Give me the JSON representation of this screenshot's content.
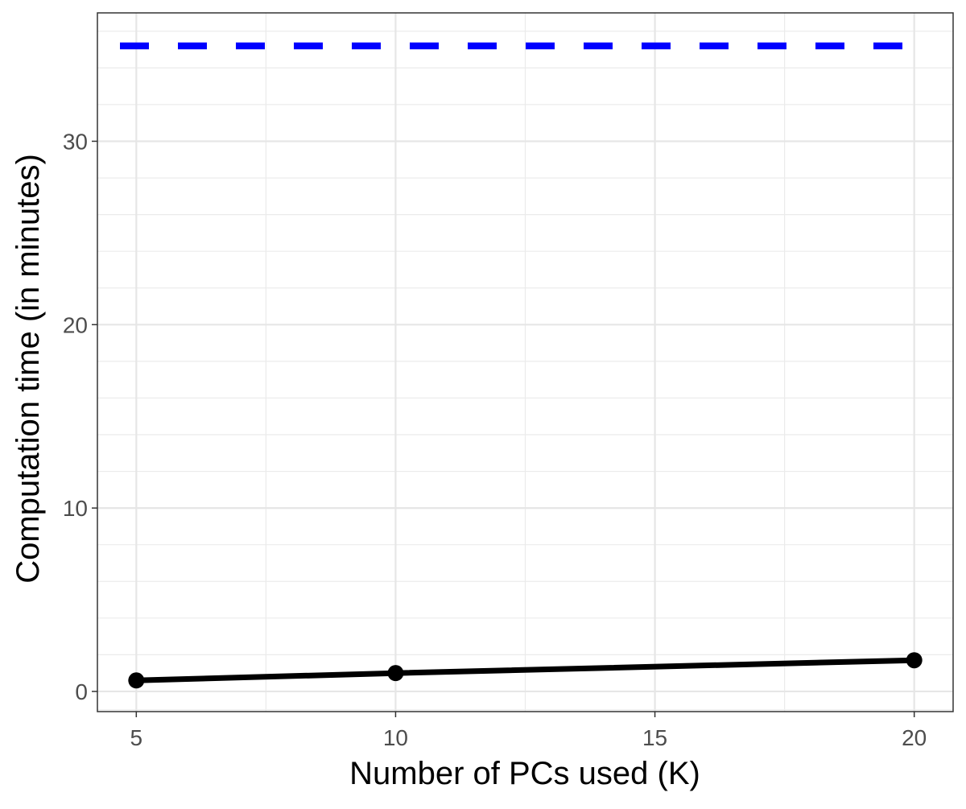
{
  "chart_data": {
    "type": "line",
    "xlabel": "Number of PCs used (K)",
    "ylabel": "Computation time (in minutes)",
    "xlim": [
      4.25,
      20.75
    ],
    "ylim": [
      -1.1,
      37.0
    ],
    "x_ticks": [
      5,
      10,
      15,
      20
    ],
    "x_minor_ticks": [
      7.5,
      12.5,
      17.5
    ],
    "y_ticks": [
      0,
      10,
      20,
      30
    ],
    "y_minor_ticks": [
      -1,
      2,
      4,
      6,
      8,
      12,
      14,
      16,
      18,
      22,
      24,
      26,
      28,
      32,
      34,
      36
    ],
    "grid": true,
    "series": [
      {
        "x": [
          5,
          10,
          20
        ],
        "values": [
          0.6,
          1.0,
          1.7
        ],
        "color": "#000000",
        "style": "solid",
        "markers": true
      }
    ],
    "reference_lines": [
      {
        "orientation": "horizontal",
        "y": 35.2,
        "color": "#0000ff",
        "style": "dashed"
      }
    ]
  }
}
